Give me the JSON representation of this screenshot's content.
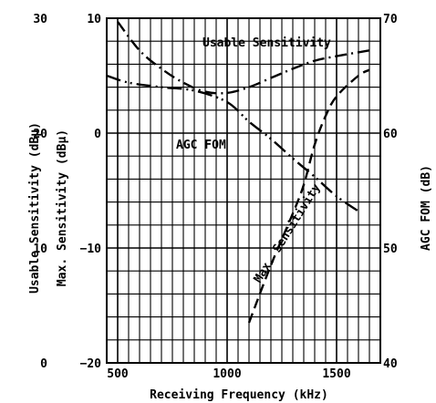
{
  "chart_data": {
    "type": "line",
    "xlabel": "Receiving Frequency (kHz)",
    "xlim": [
      450,
      1700
    ],
    "x_ticks": [
      "500",
      "1000",
      "1500"
    ],
    "grid": true,
    "axes": {
      "usable": {
        "label": "Usable Sensitivity (dBμ)",
        "ylim": [
          0,
          30
        ],
        "ticks": [
          "0",
          "10",
          "20",
          "30"
        ]
      },
      "max": {
        "label": "Max. Sensitivity (dBμ)",
        "ylim": [
          -20,
          10
        ],
        "ticks": [
          "−20",
          "−10",
          "0",
          "10"
        ]
      },
      "agc": {
        "label": "AGC FOM (dB)",
        "ylim": [
          40,
          70
        ],
        "ticks": [
          "40",
          "50",
          "60",
          "70"
        ]
      }
    },
    "series": [
      {
        "name": "Usable Sensitivity",
        "axis": "usable",
        "style": "dash-dot",
        "x": [
          500,
          600,
          700,
          800,
          900,
          1000,
          1100,
          1200,
          1300,
          1400,
          1500,
          1650
        ],
        "y": [
          29.7,
          27.2,
          25.6,
          24.4,
          23.6,
          23.5,
          24.0,
          24.8,
          25.6,
          26.3,
          26.7,
          27.2
        ]
      },
      {
        "name": "AGC FOM",
        "axis": "agc",
        "style": "long-dash-dot-dot",
        "x": [
          450,
          550,
          700,
          850,
          1000,
          1100,
          1200,
          1300,
          1400,
          1500,
          1600
        ],
        "y": [
          65.0,
          64.4,
          64.0,
          63.7,
          62.7,
          61.0,
          59.5,
          57.8,
          56.2,
          54.5,
          53.2
        ]
      },
      {
        "name": "Max. Sensitivity",
        "axis": "max",
        "style": "dashed",
        "x": [
          1100,
          1200,
          1300,
          1350,
          1400,
          1450,
          1500,
          1600,
          1650
        ],
        "y": [
          -16.5,
          -11.5,
          -7.0,
          -4.5,
          -1.0,
          1.5,
          3.2,
          5.0,
          5.5
        ]
      }
    ],
    "annotations": [
      "Usable Sensitivity",
      "AGC FOM",
      "Max. Sensitivity"
    ]
  }
}
